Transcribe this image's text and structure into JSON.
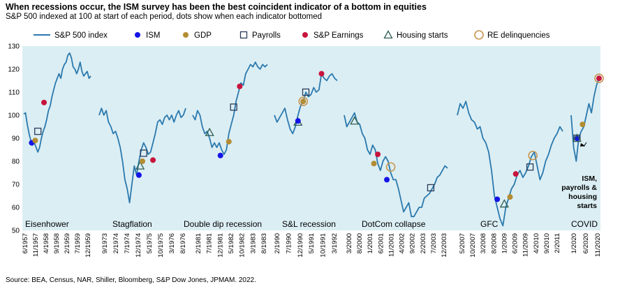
{
  "title": "When recessions occur, the ISM survey has been the best coincident indicator of a bottom in equities",
  "subtitle": "S&P 500 indexed at 100 at start of each period, dots show when each indicator bottomed",
  "source": "Source: BEA, Census, NAR, Shiller, Bloomberg, S&P Dow Jones, JPMAM. 2022.",
  "colors": {
    "background": "#dbeef4",
    "sp500": "#2b79ad",
    "ism": "#1414e6",
    "gdp": "#b48c32",
    "payrolls": "#2a3a5a",
    "earnings": "#c8143c",
    "housing": "#2e5d50",
    "re_delinquencies": "#c89650"
  },
  "chart_data": {
    "type": "line",
    "ylim": [
      50,
      130
    ],
    "yticks": [
      "130",
      "120",
      "110",
      "100",
      "90",
      "80",
      "70",
      "60",
      "50"
    ],
    "legend": {
      "placement": "top",
      "entries": [
        {
          "key": "sp500",
          "label": "S&P 500 index",
          "marker": "line"
        },
        {
          "key": "ism",
          "label": "ISM",
          "marker": "dot"
        },
        {
          "key": "gdp",
          "label": "GDP",
          "marker": "dot"
        },
        {
          "key": "payrolls",
          "label": "Payrolls",
          "marker": "square"
        },
        {
          "key": "earnings",
          "label": "S&P Earnings",
          "marker": "dot"
        },
        {
          "key": "housing",
          "label": "Housing starts",
          "marker": "triangle"
        },
        {
          "key": "re_delinquencies",
          "label": "RE delinquencies",
          "marker": "ring"
        }
      ]
    },
    "panels": [
      {
        "name": "Eisenhower",
        "xticks": [
          "6/1957",
          "11/1957",
          "4/1958",
          "9/1958",
          "2/1959",
          "7/1959",
          "12/1959"
        ],
        "values": [
          100.5,
          101,
          96,
          92,
          89,
          87,
          88,
          86,
          84,
          86,
          90,
          93,
          95,
          98,
          102,
          104,
          108,
          111,
          114,
          116,
          118,
          116,
          120,
          122,
          123,
          126,
          127,
          125,
          121,
          120,
          118,
          120,
          123,
          119,
          117,
          118,
          119,
          116,
          117
        ],
        "markers": [
          {
            "type": "ism",
            "x": 4.5,
            "y": 88
          },
          {
            "type": "gdp",
            "x": 6.5,
            "y": 89
          },
          {
            "type": "payrolls",
            "x": 8,
            "y": 93
          },
          {
            "type": "earnings",
            "x": 11.5,
            "y": 105.5
          }
        ]
      },
      {
        "name": "Stagflation",
        "xticks": [
          "9/1973",
          "2/1974",
          "7/1974",
          "12/1974",
          "5/1975",
          "10/1975",
          "3/1976",
          "8/1976"
        ],
        "values": [
          100,
          103,
          100,
          102,
          97,
          95,
          92,
          93,
          90,
          86,
          80,
          72,
          68,
          62,
          70,
          78,
          74,
          80,
          85,
          88,
          86,
          83,
          84,
          88,
          92,
          97,
          98,
          96,
          99,
          100,
          98,
          100,
          97,
          100,
          102,
          99,
          100,
          103
        ],
        "markers": [
          {
            "type": "ism",
            "x": 17,
            "y": 74
          },
          {
            "type": "housing",
            "x": 17.5,
            "y": 78
          },
          {
            "type": "gdp",
            "x": 18.5,
            "y": 80
          },
          {
            "type": "payrolls",
            "x": 19,
            "y": 83.5
          },
          {
            "type": "earnings",
            "x": 23,
            "y": 80.5
          }
        ]
      },
      {
        "name": "Double dip recession",
        "xticks": [
          "2/1981",
          "7/1981",
          "12/1981",
          "5/1982",
          "10/1982",
          "3/1983",
          "8/1983"
        ],
        "values": [
          100,
          98,
          102,
          100,
          95,
          92,
          93,
          90,
          86,
          88,
          86,
          88,
          85,
          83,
          85,
          92,
          96,
          100,
          106,
          110,
          114,
          113,
          118,
          120,
          122,
          121,
          123,
          121,
          120,
          122,
          121,
          122
        ],
        "markers": [
          {
            "type": "housing",
            "x": 7,
            "y": 92.5
          },
          {
            "type": "ism",
            "x": 11.5,
            "y": 82.5
          },
          {
            "type": "gdp",
            "x": 15,
            "y": 88.5
          },
          {
            "type": "payrolls",
            "x": 17,
            "y": 103.5
          },
          {
            "type": "earnings",
            "x": 19.5,
            "y": 112.5
          }
        ]
      },
      {
        "name": "S&L recession",
        "xticks": [
          "2/1990",
          "7/1990",
          "12/1990",
          "5/1991",
          "10/1991",
          "3/1992"
        ],
        "values": [
          100,
          97,
          99,
          101,
          103,
          98,
          94,
          92,
          95,
          100,
          104,
          106,
          110,
          108,
          109,
          112,
          110,
          111,
          118,
          116,
          115,
          117,
          118,
          116,
          115
        ],
        "markers": [
          {
            "type": "housing",
            "x": 9,
            "y": 97
          },
          {
            "type": "ism",
            "x": 9,
            "y": 97.5
          },
          {
            "type": "gdp",
            "x": 11,
            "y": 106
          },
          {
            "type": "re_delinquencies",
            "x": 11,
            "y": 106
          },
          {
            "type": "payrolls",
            "x": 12,
            "y": 110
          },
          {
            "type": "earnings",
            "x": 18,
            "y": 118
          }
        ]
      },
      {
        "name": "DotCom collapse",
        "xticks": [
          "3/2000",
          "8/2000",
          "1/2001",
          "6/2001",
          "11/2001",
          "4/2002",
          "9/2002",
          "2/2003",
          "7/2003",
          "12/2003"
        ],
        "values": [
          100,
          95,
          97,
          99,
          101,
          97,
          96,
          92,
          90,
          85,
          83,
          87,
          85,
          79,
          76,
          80,
          82,
          80,
          75,
          72,
          72,
          68,
          63,
          58,
          60,
          62,
          56,
          56,
          58,
          60,
          60,
          64,
          65,
          66,
          68,
          70,
          73,
          74,
          76,
          78,
          77
        ],
        "markers": [
          {
            "type": "housing",
            "x": 4,
            "y": 97.5
          },
          {
            "type": "gdp",
            "x": 11.5,
            "y": 79
          },
          {
            "type": "earnings",
            "x": 13,
            "y": 83
          },
          {
            "type": "ism",
            "x": 16.5,
            "y": 72
          },
          {
            "type": "re_delinquencies",
            "x": 18,
            "y": 77.5
          },
          {
            "type": "payrolls",
            "x": 33.5,
            "y": 68.5
          }
        ]
      },
      {
        "name": "GFC",
        "xticks": [
          "5/2007",
          "10/2007",
          "3/2008",
          "8/2008",
          "1/2009",
          "6/2009",
          "11/2009",
          "4/2010",
          "9/2010",
          "2/2011"
        ],
        "values": [
          100,
          105,
          103,
          106,
          101,
          98,
          97,
          94,
          95,
          90,
          88,
          84,
          76,
          65,
          60,
          55,
          52,
          60,
          64,
          68,
          70,
          74,
          76,
          73,
          75,
          78,
          82,
          84,
          78,
          72,
          75,
          80,
          83,
          87,
          90,
          92,
          95,
          93
        ],
        "markers": [
          {
            "type": "ism",
            "x": 14,
            "y": 63.5
          },
          {
            "type": "housing",
            "x": 16.5,
            "y": 61.5
          },
          {
            "type": "gdp",
            "x": 18.5,
            "y": 64.5
          },
          {
            "type": "earnings",
            "x": 20.5,
            "y": 74.5
          },
          {
            "type": "payrolls",
            "x": 25.5,
            "y": 77.5
          },
          {
            "type": "re_delinquencies",
            "x": 26.5,
            "y": 82.5
          }
        ]
      },
      {
        "name": "COVID",
        "xticks": [
          "1/2020",
          "6/2020",
          "11/2020"
        ],
        "values": [
          100,
          86,
          80,
          90,
          93,
          95,
          100,
          105,
          101,
          108,
          113,
          116
        ],
        "markers": [
          {
            "type": "ism",
            "x": 2.3,
            "y": 90
          },
          {
            "type": "payrolls",
            "x": 2.3,
            "y": 90
          },
          {
            "type": "housing",
            "x": 2.3,
            "y": 90
          },
          {
            "type": "gdp",
            "x": 4.5,
            "y": 96
          },
          {
            "type": "earnings",
            "x": 11,
            "y": 116
          },
          {
            "type": "re_delinquencies",
            "x": 11,
            "y": 116
          }
        ],
        "annotation": [
          "ISM,",
          "payrolls &",
          "housing",
          "starts"
        ]
      }
    ]
  }
}
